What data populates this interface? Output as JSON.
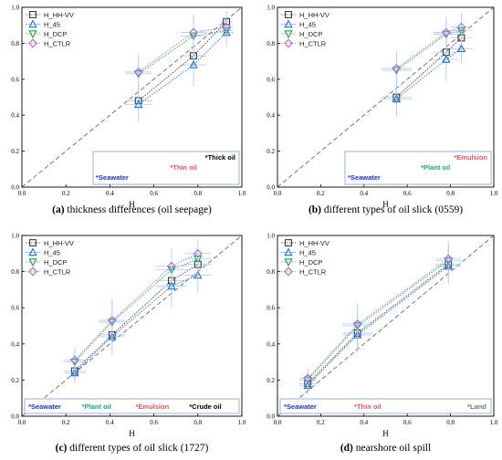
{
  "chart_data": [
    {
      "type": "scatter",
      "caption_letter": "(a)",
      "caption_text": " thickness differences (oil seepage)",
      "xlabel": "H",
      "ylabel": "",
      "xlim": [
        0,
        1
      ],
      "ylim": [
        0,
        1
      ],
      "xticks": [
        "0.0",
        "0.2",
        "0.4",
        "0.6",
        "0.8",
        "1.0"
      ],
      "yticks": [
        "0.0",
        "0.2",
        "0.4",
        "0.6",
        "0.8",
        "1.0"
      ],
      "legend_position": "top-left",
      "legend_labels": [
        "H_HH-VV",
        "H_45",
        "H_DCP",
        "H_CTLR"
      ],
      "series": [
        {
          "name": "H_HH-VV",
          "points": [
            {
              "x": 0.53,
              "y": 0.48,
              "xerr": 0.06,
              "yerr": 0.1
            },
            {
              "x": 0.78,
              "y": 0.73,
              "xerr": 0.06,
              "yerr": 0.1
            },
            {
              "x": 0.93,
              "y": 0.92,
              "xerr": 0.03,
              "yerr": 0.06
            }
          ]
        },
        {
          "name": "H_45",
          "points": [
            {
              "x": 0.53,
              "y": 0.46,
              "xerr": 0.06,
              "yerr": 0.1
            },
            {
              "x": 0.78,
              "y": 0.68,
              "xerr": 0.06,
              "yerr": 0.12
            },
            {
              "x": 0.93,
              "y": 0.86,
              "xerr": 0.03,
              "yerr": 0.08
            }
          ]
        },
        {
          "name": "H_DCP",
          "points": [
            {
              "x": 0.53,
              "y": 0.63,
              "xerr": 0.06,
              "yerr": 0.1
            },
            {
              "x": 0.78,
              "y": 0.84,
              "xerr": 0.06,
              "yerr": 0.1
            },
            {
              "x": 0.93,
              "y": 0.87,
              "xerr": 0.03,
              "yerr": 0.06
            }
          ]
        },
        {
          "name": "H_CTLR",
          "points": [
            {
              "x": 0.53,
              "y": 0.64,
              "xerr": 0.06,
              "yerr": 0.1
            },
            {
              "x": 0.78,
              "y": 0.86,
              "xerr": 0.06,
              "yerr": 0.1
            },
            {
              "x": 0.93,
              "y": 0.89,
              "xerr": 0.03,
              "yerr": 0.06
            }
          ]
        }
      ],
      "annotations": [
        {
          "text": "*Thick oil",
          "color": "#000000",
          "align": "right",
          "row": 0
        },
        {
          "text": "*Thin oil",
          "color": "#e8506a",
          "align": "center",
          "row": 1
        },
        {
          "text": "*Seawater",
          "color": "#2030c8",
          "align": "left",
          "row": 2
        }
      ]
    },
    {
      "type": "scatter",
      "caption_letter": "(b)",
      "caption_text": " different types of oil slick (0559)",
      "xlabel": "H",
      "ylabel": "",
      "xlim": [
        0,
        1
      ],
      "ylim": [
        0,
        1
      ],
      "xticks": [
        "0.0",
        "0.2",
        "0.4",
        "0.6",
        "0.8",
        "1.0"
      ],
      "yticks": [
        "0.0",
        "0.2",
        "0.4",
        "0.6",
        "0.8",
        "1.0"
      ],
      "legend_position": "top-left",
      "legend_labels": [
        "H_HH-VV",
        "H_45",
        "H_DCP",
        "H_CTLR"
      ],
      "series": [
        {
          "name": "H_HH-VV",
          "points": [
            {
              "x": 0.55,
              "y": 0.5,
              "xerr": 0.07,
              "yerr": 0.1
            },
            {
              "x": 0.78,
              "y": 0.75,
              "xerr": 0.06,
              "yerr": 0.1
            },
            {
              "x": 0.85,
              "y": 0.83,
              "xerr": 0.05,
              "yerr": 0.08
            }
          ]
        },
        {
          "name": "H_45",
          "points": [
            {
              "x": 0.55,
              "y": 0.49,
              "xerr": 0.07,
              "yerr": 0.1
            },
            {
              "x": 0.78,
              "y": 0.71,
              "xerr": 0.06,
              "yerr": 0.12
            },
            {
              "x": 0.85,
              "y": 0.77,
              "xerr": 0.05,
              "yerr": 0.08
            }
          ]
        },
        {
          "name": "H_DCP",
          "points": [
            {
              "x": 0.55,
              "y": 0.65,
              "xerr": 0.07,
              "yerr": 0.1
            },
            {
              "x": 0.78,
              "y": 0.85,
              "xerr": 0.06,
              "yerr": 0.09
            },
            {
              "x": 0.85,
              "y": 0.87,
              "xerr": 0.05,
              "yerr": 0.08
            }
          ]
        },
        {
          "name": "H_CTLR",
          "points": [
            {
              "x": 0.55,
              "y": 0.66,
              "xerr": 0.07,
              "yerr": 0.1
            },
            {
              "x": 0.78,
              "y": 0.86,
              "xerr": 0.06,
              "yerr": 0.09
            },
            {
              "x": 0.85,
              "y": 0.89,
              "xerr": 0.05,
              "yerr": 0.08
            }
          ]
        }
      ],
      "annotations": [
        {
          "text": "*Emulsion",
          "color": "#e8506a",
          "align": "right",
          "row": 0
        },
        {
          "text": "*Plant oil",
          "color": "#18a878",
          "align": "center",
          "row": 1
        },
        {
          "text": "*Seawater",
          "color": "#2030c8",
          "align": "left",
          "row": 2
        }
      ]
    },
    {
      "type": "scatter",
      "caption_letter": "(c)",
      "caption_text": " different types of oil slick (1727)",
      "xlabel": "H",
      "ylabel": "",
      "xlim": [
        0,
        1
      ],
      "ylim": [
        0,
        1
      ],
      "xticks": [
        "0.0",
        "0.2",
        "0.4",
        "0.6",
        "0.8",
        "1.0"
      ],
      "yticks": [
        "0.0",
        "0.2",
        "0.4",
        "0.6",
        "0.8",
        "1.0"
      ],
      "legend_position": "top-left",
      "legend_labels": [
        "H_HH-VV",
        "H_45",
        "H_DCP",
        "H_CTLR"
      ],
      "series": [
        {
          "name": "H_HH-VV",
          "points": [
            {
              "x": 0.24,
              "y": 0.25,
              "xerr": 0.05,
              "yerr": 0.06
            },
            {
              "x": 0.41,
              "y": 0.45,
              "xerr": 0.06,
              "yerr": 0.1
            },
            {
              "x": 0.68,
              "y": 0.75,
              "xerr": 0.07,
              "yerr": 0.1
            },
            {
              "x": 0.8,
              "y": 0.84,
              "xerr": 0.06,
              "yerr": 0.08
            }
          ]
        },
        {
          "name": "H_45",
          "points": [
            {
              "x": 0.24,
              "y": 0.24,
              "xerr": 0.05,
              "yerr": 0.06
            },
            {
              "x": 0.41,
              "y": 0.44,
              "xerr": 0.06,
              "yerr": 0.1
            },
            {
              "x": 0.68,
              "y": 0.72,
              "xerr": 0.07,
              "yerr": 0.12
            },
            {
              "x": 0.8,
              "y": 0.78,
              "xerr": 0.06,
              "yerr": 0.1
            }
          ]
        },
        {
          "name": "H_DCP",
          "points": [
            {
              "x": 0.24,
              "y": 0.3,
              "xerr": 0.05,
              "yerr": 0.07
            },
            {
              "x": 0.41,
              "y": 0.52,
              "xerr": 0.06,
              "yerr": 0.12
            },
            {
              "x": 0.68,
              "y": 0.81,
              "xerr": 0.07,
              "yerr": 0.1
            },
            {
              "x": 0.8,
              "y": 0.87,
              "xerr": 0.06,
              "yerr": 0.08
            }
          ]
        },
        {
          "name": "H_CTLR",
          "points": [
            {
              "x": 0.24,
              "y": 0.31,
              "xerr": 0.05,
              "yerr": 0.07
            },
            {
              "x": 0.41,
              "y": 0.53,
              "xerr": 0.06,
              "yerr": 0.12
            },
            {
              "x": 0.68,
              "y": 0.83,
              "xerr": 0.07,
              "yerr": 0.1
            },
            {
              "x": 0.8,
              "y": 0.9,
              "xerr": 0.06,
              "yerr": 0.08
            }
          ]
        }
      ],
      "annotations": [
        {
          "text": "*Seawater",
          "color": "#2030c8",
          "align": "bottom",
          "row": 0,
          "slot": 0
        },
        {
          "text": "*Plant oil",
          "color": "#18a878",
          "align": "bottom",
          "row": 0,
          "slot": 1
        },
        {
          "text": "*Emulsion",
          "color": "#e8506a",
          "align": "bottom",
          "row": 0,
          "slot": 2
        },
        {
          "text": "*Crude oil",
          "color": "#000000",
          "align": "bottom",
          "row": 0,
          "slot": 3
        }
      ]
    },
    {
      "type": "scatter",
      "caption_letter": "(d)",
      "caption_text": " nearshore oil spill",
      "xlabel": "H",
      "ylabel": "",
      "xlim": [
        0,
        1
      ],
      "ylim": [
        0,
        1
      ],
      "xticks": [
        "0.0",
        "0.2",
        "0.4",
        "0.6",
        "0.8",
        "1.0"
      ],
      "yticks": [
        "0.0",
        "0.2",
        "0.4",
        "0.6",
        "0.8",
        "1.0"
      ],
      "legend_position": "top-left",
      "legend_labels": [
        "H_HH-VV",
        "H_45",
        "H_DCP",
        "H_CTLR"
      ],
      "series": [
        {
          "name": "H_HH-VV",
          "points": [
            {
              "x": 0.14,
              "y": 0.18,
              "xerr": 0.04,
              "yerr": 0.05
            },
            {
              "x": 0.37,
              "y": 0.46,
              "xerr": 0.07,
              "yerr": 0.1
            },
            {
              "x": 0.79,
              "y": 0.84,
              "xerr": 0.06,
              "yerr": 0.1
            }
          ]
        },
        {
          "name": "H_45",
          "points": [
            {
              "x": 0.14,
              "y": 0.17,
              "xerr": 0.04,
              "yerr": 0.05
            },
            {
              "x": 0.37,
              "y": 0.45,
              "xerr": 0.07,
              "yerr": 0.1
            },
            {
              "x": 0.79,
              "y": 0.83,
              "xerr": 0.06,
              "yerr": 0.1
            }
          ]
        },
        {
          "name": "H_DCP",
          "points": [
            {
              "x": 0.14,
              "y": 0.2,
              "xerr": 0.04,
              "yerr": 0.06
            },
            {
              "x": 0.37,
              "y": 0.5,
              "xerr": 0.07,
              "yerr": 0.12
            },
            {
              "x": 0.79,
              "y": 0.86,
              "xerr": 0.06,
              "yerr": 0.1
            }
          ]
        },
        {
          "name": "H_CTLR",
          "points": [
            {
              "x": 0.14,
              "y": 0.21,
              "xerr": 0.04,
              "yerr": 0.06
            },
            {
              "x": 0.37,
              "y": 0.51,
              "xerr": 0.07,
              "yerr": 0.12
            },
            {
              "x": 0.79,
              "y": 0.87,
              "xerr": 0.06,
              "yerr": 0.1
            }
          ]
        }
      ],
      "annotations": [
        {
          "text": "*Seawater",
          "color": "#2030c8",
          "align": "bottom",
          "row": 0,
          "slot": 0
        },
        {
          "text": "*Thin oil",
          "color": "#e8506a",
          "align": "bottom",
          "row": 0,
          "slot": 1
        },
        {
          "text": "*Land",
          "color": "#777777",
          "align": "bottom",
          "row": 0,
          "slot": 2
        }
      ]
    }
  ],
  "style": {
    "series_colors": {
      "H_HH-VV": "#3a3a3a",
      "H_45": "#1f6fd8",
      "H_DCP": "#18a848",
      "H_CTLR": "#b066d8"
    },
    "marker_shapes": {
      "H_HH-VV": "square",
      "H_45": "triangle-up",
      "H_DCP": "triangle-down",
      "H_CTLR": "diamond"
    },
    "errorbar_color": "#aaccee",
    "reference_line": "dashed diagonal y = x",
    "grid": false
  }
}
